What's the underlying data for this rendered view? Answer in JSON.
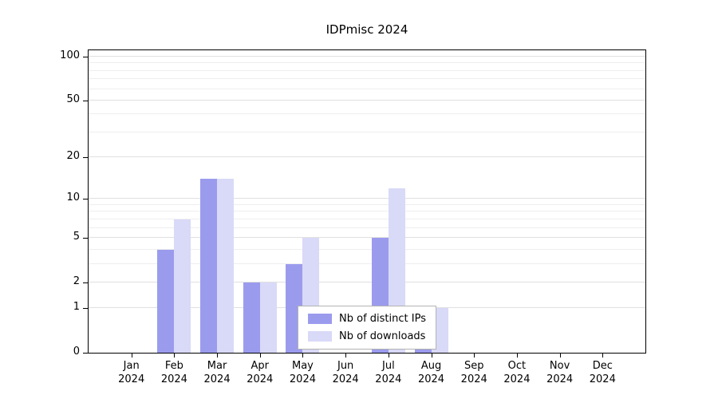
{
  "title": "IDPmisc 2024",
  "chart_data": {
    "type": "bar",
    "title": "IDPmisc 2024",
    "categories": [
      {
        "month": "Jan",
        "year": "2024"
      },
      {
        "month": "Feb",
        "year": "2024"
      },
      {
        "month": "Mar",
        "year": "2024"
      },
      {
        "month": "Apr",
        "year": "2024"
      },
      {
        "month": "May",
        "year": "2024"
      },
      {
        "month": "Jun",
        "year": "2024"
      },
      {
        "month": "Jul",
        "year": "2024"
      },
      {
        "month": "Aug",
        "year": "2024"
      },
      {
        "month": "Sep",
        "year": "2024"
      },
      {
        "month": "Oct",
        "year": "2024"
      },
      {
        "month": "Nov",
        "year": "2024"
      },
      {
        "month": "Dec",
        "year": "2024"
      }
    ],
    "series": [
      {
        "name": "Nb of distinct IPs",
        "color": "#9b9bee",
        "values": [
          0,
          4,
          14,
          2,
          3,
          0,
          5,
          1,
          0,
          0,
          0,
          0
        ]
      },
      {
        "name": "Nb of downloads",
        "color": "#d9d9f8",
        "values": [
          0,
          7,
          14,
          2,
          5,
          0,
          12,
          1,
          0,
          0,
          0,
          0
        ]
      }
    ],
    "xlabel": "",
    "ylabel": "",
    "y_scale": "log10(v+1)",
    "y_ticks": [
      0,
      1,
      2,
      5,
      10,
      20,
      50,
      100
    ],
    "y_minor_ticks": [
      3,
      4,
      6,
      7,
      8,
      9,
      30,
      40,
      60,
      70,
      80,
      90
    ],
    "ylim": [
      0,
      100
    ],
    "grid": "horizontal",
    "legend_position": "lower center"
  }
}
